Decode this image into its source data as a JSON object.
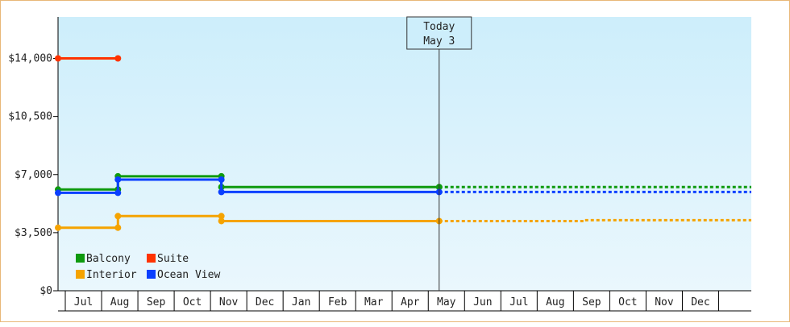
{
  "colors": {
    "frame_border": "#e8b878",
    "plot_bg_top": "#cdeefb",
    "plot_bg_bottom": "#eaf7fd",
    "axis": "#000000",
    "today_line": "#333333"
  },
  "today": {
    "line1": "Today",
    "line2": "May 3"
  },
  "chart_data": {
    "type": "line",
    "title": "",
    "xlabel": "",
    "ylabel": "",
    "y_ticks": [
      "$0",
      "$3,500",
      "$7,000",
      "$10,500",
      "$14,000"
    ],
    "y_tick_values": [
      0,
      3500,
      7000,
      10500,
      14000
    ],
    "ylim": [
      0,
      16500
    ],
    "x_ticks": [
      "Jul",
      "Aug",
      "Sep",
      "Oct",
      "Nov",
      "Dec",
      "Jan",
      "Feb",
      "Mar",
      "Apr",
      "May",
      "Jun",
      "Jul",
      "Aug",
      "Sep",
      "Oct",
      "Nov",
      "Dec"
    ],
    "x_label_index": [
      0.7,
      1.7,
      2.7,
      3.7,
      4.7,
      5.7,
      6.7,
      7.7,
      8.7,
      9.7,
      10.7,
      11.7,
      12.7,
      13.7,
      14.7,
      15.7,
      16.7,
      17.7
    ],
    "x_tick_index": [
      0.2,
      1.2,
      2.2,
      3.2,
      4.2,
      5.2,
      6.2,
      7.2,
      8.2,
      9.2,
      10.2,
      11.2,
      12.2,
      13.2,
      14.2,
      15.2,
      16.2,
      17.2,
      18.2
    ],
    "xlim": [
      0,
      19.1
    ],
    "today_x": 10.5,
    "legend_placement": "bottom-left",
    "grid": false,
    "series": [
      {
        "name": "Balcony",
        "color": "#0e9a0e",
        "points": [
          [
            0,
            6100
          ],
          [
            1.65,
            6100
          ],
          [
            1.65,
            6900
          ],
          [
            4.5,
            6900
          ],
          [
            4.5,
            6250
          ],
          [
            10.5,
            6250
          ]
        ],
        "markers": [
          [
            0,
            6100
          ],
          [
            1.65,
            6100
          ],
          [
            1.65,
            6900
          ],
          [
            4.5,
            6900
          ],
          [
            4.5,
            6250
          ],
          [
            10.5,
            6250
          ]
        ],
        "forecast": [
          [
            10.5,
            6250
          ],
          [
            19.1,
            6250
          ]
        ]
      },
      {
        "name": "Suite",
        "color": "#ff3300",
        "points": [
          [
            0,
            14000
          ],
          [
            1.65,
            14000
          ]
        ],
        "markers": [
          [
            0,
            14000
          ],
          [
            1.65,
            14000
          ]
        ],
        "forecast": []
      },
      {
        "name": "Interior",
        "color": "#f5a300",
        "points": [
          [
            0,
            3800
          ],
          [
            1.65,
            3800
          ],
          [
            1.65,
            4500
          ],
          [
            4.5,
            4500
          ],
          [
            4.5,
            4200
          ],
          [
            10.5,
            4200
          ]
        ],
        "markers": [
          [
            0,
            3800
          ],
          [
            1.65,
            3800
          ],
          [
            1.65,
            4500
          ],
          [
            4.5,
            4500
          ],
          [
            4.5,
            4200
          ],
          [
            10.5,
            4200
          ]
        ],
        "forecast": [
          [
            10.5,
            4200
          ],
          [
            14.5,
            4200
          ],
          [
            14.5,
            4250
          ],
          [
            19.1,
            4250
          ]
        ]
      },
      {
        "name": "Ocean View",
        "color": "#0a3fff",
        "points": [
          [
            0,
            5900
          ],
          [
            1.65,
            5900
          ],
          [
            1.65,
            6700
          ],
          [
            4.5,
            6700
          ],
          [
            4.5,
            5950
          ],
          [
            10.5,
            5950
          ]
        ],
        "markers": [
          [
            0,
            5900
          ],
          [
            1.65,
            5900
          ],
          [
            1.65,
            6700
          ],
          [
            4.5,
            6700
          ],
          [
            4.5,
            5950
          ],
          [
            10.5,
            5950
          ]
        ],
        "forecast": [
          [
            10.5,
            5950
          ],
          [
            19.1,
            5950
          ]
        ]
      }
    ]
  }
}
